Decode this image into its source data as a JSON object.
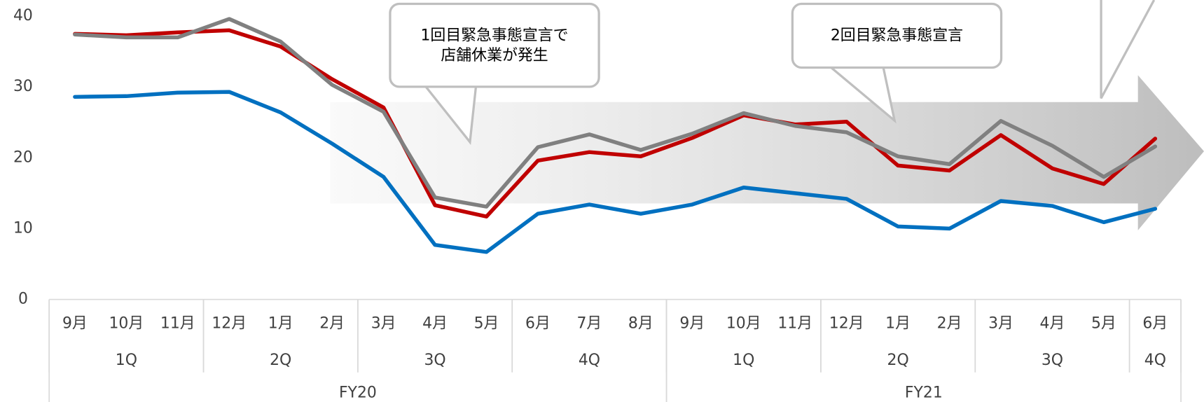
{
  "chart_data": {
    "type": "line",
    "categories": [
      "9月",
      "10月",
      "11月",
      "12月",
      "1月",
      "2月",
      "3月",
      "4月",
      "5月",
      "6月",
      "7月",
      "8月",
      "9月",
      "10月",
      "11月",
      "12月",
      "1月",
      "2月",
      "3月",
      "4月",
      "5月",
      "6月"
    ],
    "quarters": [
      "1Q",
      "1Q",
      "1Q",
      "2Q",
      "2Q",
      "2Q",
      "3Q",
      "3Q",
      "3Q",
      "4Q",
      "4Q",
      "4Q",
      "1Q",
      "1Q",
      "1Q",
      "2Q",
      "2Q",
      "2Q",
      "3Q",
      "3Q",
      "3Q",
      "4Q"
    ],
    "fiscal_years": [
      "FY20",
      "FY20",
      "FY20",
      "FY20",
      "FY20",
      "FY20",
      "FY20",
      "FY20",
      "FY20",
      "FY20",
      "FY20",
      "FY20",
      "FY21",
      "FY21",
      "FY21",
      "FY21",
      "FY21",
      "FY21",
      "FY21",
      "FY21",
      "FY21",
      "FY21"
    ],
    "series": [
      {
        "color": "#c00000",
        "values": [
          37.5,
          37.3,
          37.7,
          38.0,
          35.7,
          31.1,
          27.1,
          13.3,
          11.7,
          19.6,
          20.8,
          20.2,
          22.8,
          26.0,
          24.7,
          25.1,
          18.9,
          18.2,
          23.2,
          18.5,
          16.3,
          22.7
        ]
      },
      {
        "color": "#808080",
        "values": [
          37.4,
          37.0,
          37.0,
          39.6,
          36.4,
          30.3,
          26.5,
          14.4,
          13.1,
          21.5,
          23.3,
          21.1,
          23.4,
          26.3,
          24.5,
          23.6,
          20.2,
          19.1,
          25.2,
          21.7,
          17.3,
          21.6
        ]
      },
      {
        "color": "#0070c0",
        "values": [
          28.6,
          28.7,
          29.2,
          29.3,
          26.4,
          22.0,
          17.3,
          7.7,
          6.7,
          12.1,
          13.4,
          12.1,
          13.4,
          15.8,
          15.0,
          14.2,
          10.3,
          10.0,
          13.9,
          13.2,
          10.9,
          12.8
        ]
      }
    ],
    "ylim": [
      0,
      40
    ],
    "yticks": [
      0,
      10,
      20,
      30,
      40
    ],
    "grid": false,
    "annotations": [
      {
        "text": [
          "1回目緊急事態宣言で",
          "店舗休業が発生"
        ]
      },
      {
        "text": [
          "2回目緊急事態宣言"
        ]
      }
    ]
  }
}
